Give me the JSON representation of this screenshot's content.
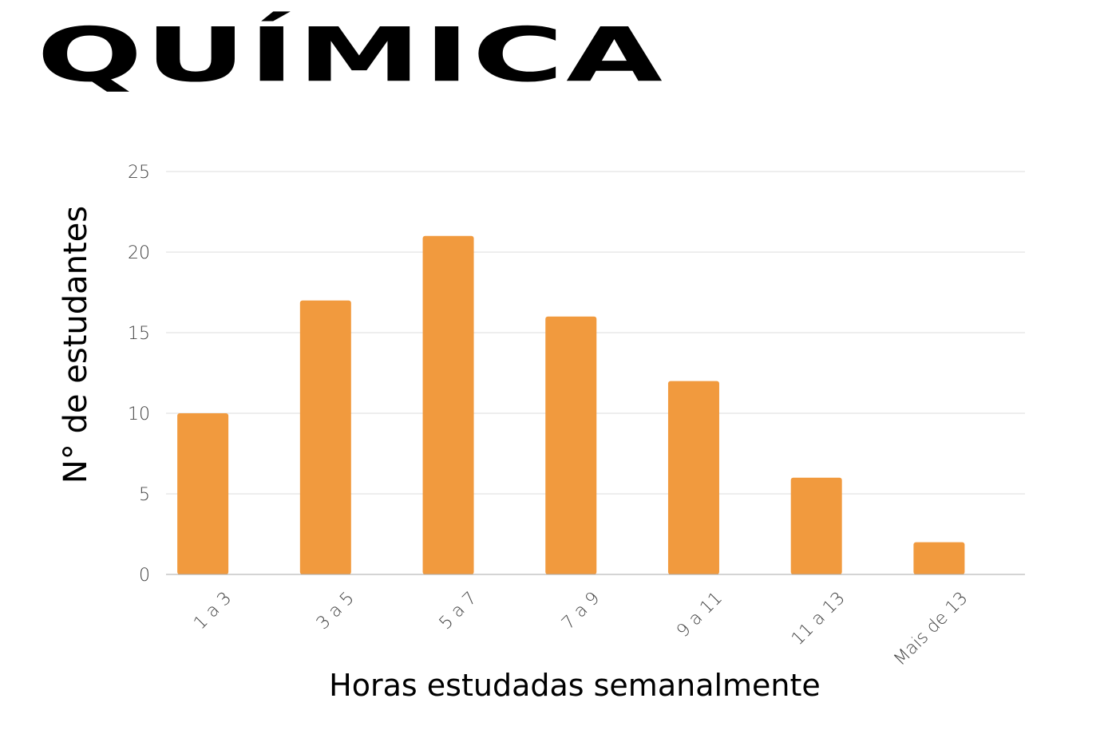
{
  "chart_data": {
    "type": "bar",
    "title": "QUÍMICA",
    "categories": [
      "1 a 3",
      "3 a 5",
      "5 a 7",
      "7 a 9",
      "9 a 11",
      "11 a 13",
      "Mais de 13"
    ],
    "values": [
      10,
      17,
      21,
      16,
      12,
      6,
      2
    ],
    "xlabel": "Horas estudadas semanalmente",
    "ylabel": "N° de estudantes",
    "ylim": [
      0,
      25
    ],
    "yticks": [
      0,
      5,
      10,
      15,
      20,
      25
    ],
    "grid": true,
    "legend": "none",
    "bar_color": "#F19A3E",
    "grid_color": "#DDDDDD",
    "axis_color": "#AAAAAA"
  }
}
